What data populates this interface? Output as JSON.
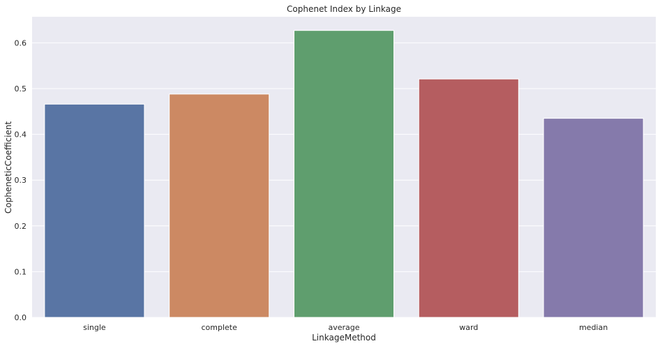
{
  "chart_data": {
    "type": "bar",
    "title": "Cophenet Index by Linkage",
    "xlabel": "LinkageMethod",
    "ylabel": "CopheneticCoefficient",
    "categories": [
      "single",
      "complete",
      "average",
      "ward",
      "median"
    ],
    "values": [
      0.466,
      0.488,
      0.627,
      0.521,
      0.435
    ],
    "ylim": [
      0,
      0.657
    ],
    "yticks": [
      0.0,
      0.1,
      0.2,
      0.3,
      0.4,
      0.5,
      0.6
    ],
    "ytick_labels": [
      "0.0",
      "0.1",
      "0.2",
      "0.3",
      "0.4",
      "0.5",
      "0.6"
    ],
    "grid": true,
    "legend": "none",
    "colors": {
      "background": "#eaeaf2",
      "grid": "#ffffff",
      "bars": [
        "#5975a4",
        "#cc8963",
        "#5f9e6e",
        "#b55d60",
        "#857aab"
      ]
    }
  }
}
